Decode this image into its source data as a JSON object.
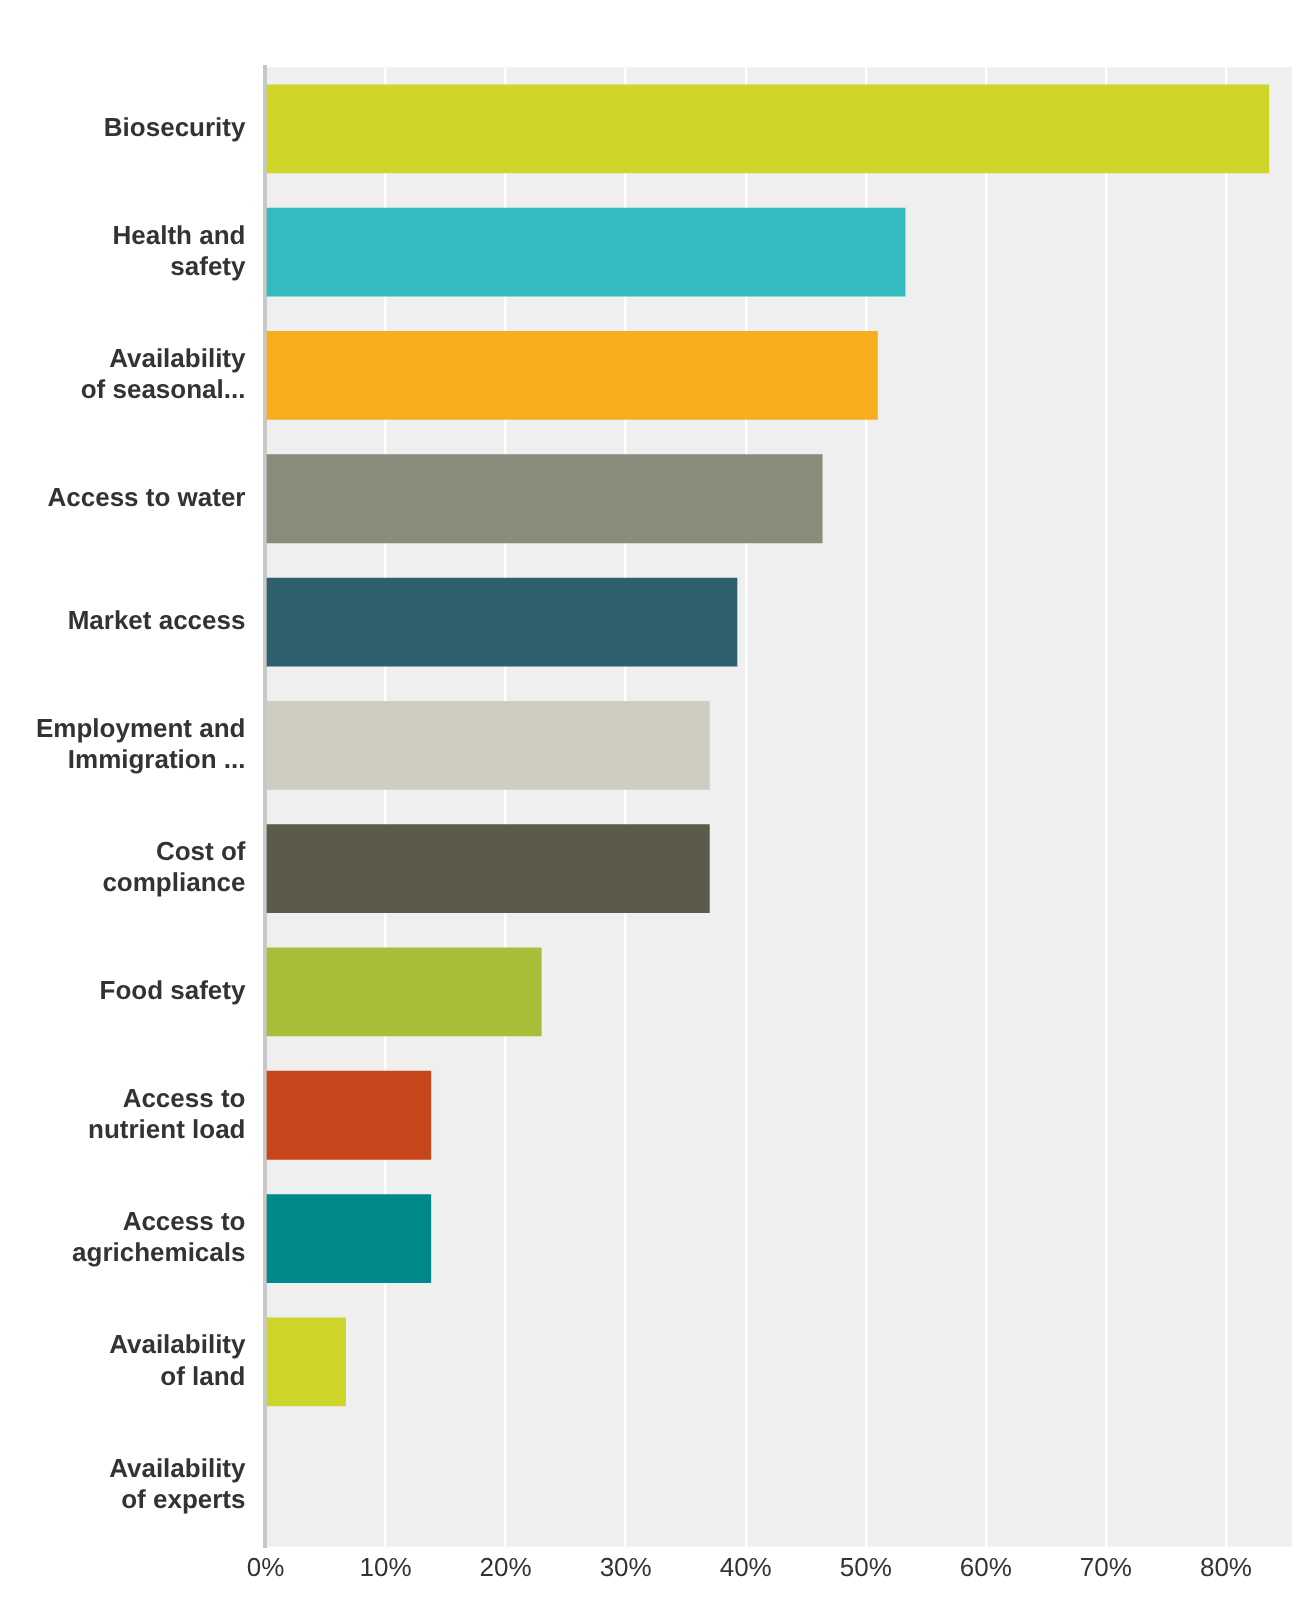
{
  "chart_data": {
    "type": "bar",
    "orientation": "horizontal",
    "categories": [
      "Biosecurity",
      "Health and\nsafety",
      "Availability\nof seasonal...",
      "Access to water",
      "Market access",
      "Employment and\nImmigration ...",
      "Cost of\ncompliance",
      "Food safety",
      "Access to\nnutrient load",
      "Access to\nagrichemicals",
      "Availability\nof land",
      "Availability\nof experts"
    ],
    "values": [
      83.6,
      53.3,
      51.0,
      46.4,
      39.3,
      37.0,
      37.0,
      23.0,
      13.8,
      13.8,
      6.7,
      0
    ],
    "colors": [
      "#d0d52a",
      "#33bbbf",
      "#f6ae1f",
      "#8a8b7b",
      "#2e5f6d",
      "#cfcdbf",
      "#5b5a4b",
      "#a9be38",
      "#c9461c",
      "#00898a",
      "#cdd42a",
      "#d0d52a"
    ],
    "xlim": [
      0,
      85.5
    ],
    "xticks": [
      {
        "value": 0,
        "label": "0%"
      },
      {
        "value": 10,
        "label": "10%"
      },
      {
        "value": 20,
        "label": "20%"
      },
      {
        "value": 30,
        "label": "30%"
      },
      {
        "value": 40,
        "label": "40%"
      },
      {
        "value": 50,
        "label": "50%"
      },
      {
        "value": 60,
        "label": "60%"
      },
      {
        "value": 70,
        "label": "70%"
      },
      {
        "value": 80,
        "label": "80%"
      }
    ],
    "grid": "x",
    "legend": false
  }
}
